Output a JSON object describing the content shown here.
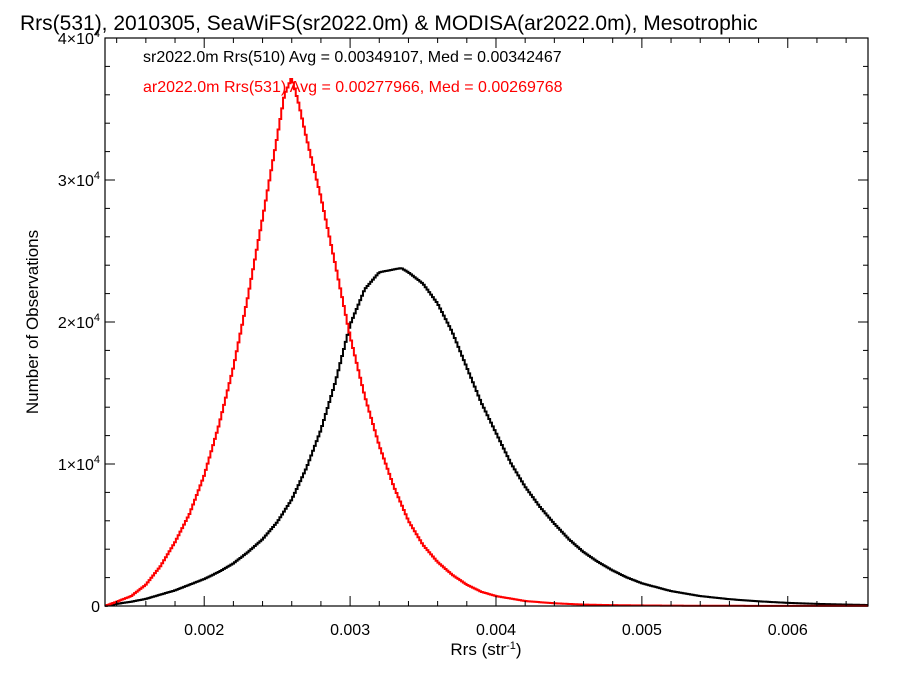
{
  "chart_data": {
    "type": "line",
    "title": "Rrs(531), 2010305, SeaWiFS(sr2022.0m) & MODISA(ar2022.0m), Mesotrophic",
    "xlabel": "Rrs (str",
    "xlabel_sup": "-1",
    "xlabel_close": ")",
    "ylabel": "Number of Observations",
    "xlim": [
      0.00132,
      0.00655
    ],
    "ylim": [
      0,
      40000
    ],
    "x_ticks": [
      {
        "value": 0.002,
        "label": "0.002"
      },
      {
        "value": 0.003,
        "label": "0.003"
      },
      {
        "value": 0.004,
        "label": "0.004"
      },
      {
        "value": 0.005,
        "label": "0.005"
      },
      {
        "value": 0.006,
        "label": "0.006"
      }
    ],
    "y_ticks": [
      {
        "value": 0,
        "label": "0",
        "sup": ""
      },
      {
        "value": 10000,
        "label": "1×10",
        "sup": "4"
      },
      {
        "value": 20000,
        "label": "2×10",
        "sup": "4"
      },
      {
        "value": 30000,
        "label": "3×10",
        "sup": "4"
      },
      {
        "value": 40000,
        "label": "4×10",
        "sup": "4"
      }
    ],
    "grid": false,
    "legend_placement": "top-left",
    "series": [
      {
        "name": "sr2022.0m Rrs(510) Avg = 0.00349107, Med = 0.00342467",
        "color": "#000000",
        "x": [
          0.00132,
          0.0014,
          0.0015,
          0.0016,
          0.0017,
          0.0018,
          0.0019,
          0.002,
          0.0021,
          0.0022,
          0.0023,
          0.0024,
          0.0025,
          0.0026,
          0.0027,
          0.0028,
          0.0029,
          0.003,
          0.0031,
          0.0032,
          0.0033,
          0.00335,
          0.0034,
          0.0035,
          0.0036,
          0.0037,
          0.0038,
          0.0039,
          0.004,
          0.0041,
          0.0042,
          0.0043,
          0.0044,
          0.0045,
          0.0046,
          0.0047,
          0.0048,
          0.0049,
          0.005,
          0.0052,
          0.0054,
          0.0056,
          0.0058,
          0.006,
          0.0062,
          0.0064,
          0.00655
        ],
        "y": [
          0,
          150,
          300,
          500,
          800,
          1100,
          1500,
          1900,
          2400,
          3000,
          3800,
          4700,
          5900,
          7500,
          9700,
          12400,
          15800,
          19800,
          22300,
          23500,
          23700,
          23800,
          23500,
          22700,
          21300,
          19300,
          16800,
          14300,
          12200,
          10100,
          8400,
          7000,
          5800,
          4700,
          3800,
          3100,
          2500,
          2000,
          1600,
          1050,
          700,
          480,
          330,
          220,
          150,
          100,
          70
        ]
      },
      {
        "name": "ar2022.0m Rrs(531) Avg = 0.00277966, Med = 0.00269768",
        "color": "#ff0000",
        "x": [
          0.00132,
          0.0014,
          0.0015,
          0.0016,
          0.0017,
          0.0018,
          0.0019,
          0.002,
          0.0021,
          0.0022,
          0.0023,
          0.0024,
          0.0025,
          0.00255,
          0.0026,
          0.00265,
          0.0027,
          0.0028,
          0.0029,
          0.003,
          0.0031,
          0.0032,
          0.0033,
          0.0034,
          0.0035,
          0.0036,
          0.0037,
          0.0038,
          0.0039,
          0.004,
          0.0042,
          0.0044,
          0.0046,
          0.0048,
          0.005,
          0.0052,
          0.0055,
          0.006,
          0.00655
        ],
        "y": [
          0,
          300,
          700,
          1500,
          2800,
          4500,
          6500,
          9200,
          12700,
          16800,
          21800,
          27300,
          33000,
          36000,
          37200,
          35300,
          33000,
          28800,
          24000,
          19000,
          14800,
          11300,
          8400,
          6000,
          4300,
          3100,
          2200,
          1500,
          1000,
          700,
          350,
          190,
          100,
          60,
          40,
          25,
          15,
          10,
          5
        ]
      }
    ]
  }
}
